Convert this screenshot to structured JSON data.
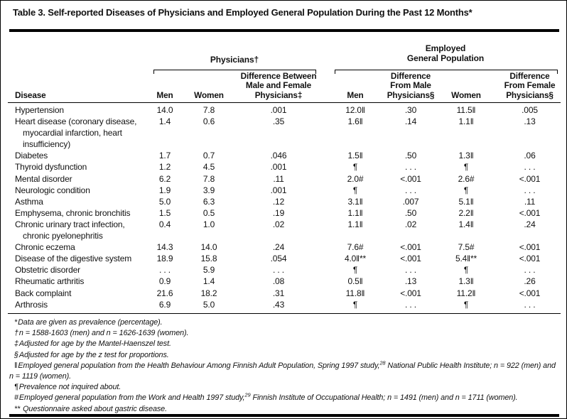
{
  "title": "Table 3. Self-reported Diseases of Physicians and Employed General Population During the Past 12 Months*",
  "header": {
    "group_physicians": "Physicians†",
    "group_population_lines": [
      "Employed",
      "General Population"
    ],
    "columns": {
      "disease": "Disease",
      "phys_men": "Men",
      "phys_women": "Women",
      "phys_diff_lines": [
        "Difference Between",
        "Male and Female",
        "Physicians‡"
      ],
      "pop_men": "Men",
      "pop_diff_male_lines": [
        "Difference",
        "From Male",
        "Physicians§"
      ],
      "pop_women": "Women",
      "pop_diff_female_lines": [
        "Difference",
        "From Female",
        "Physicians§"
      ]
    }
  },
  "rows": [
    {
      "disease": "Hypertension",
      "values": [
        "14.0",
        "7.8",
        ".001",
        "12.0‖",
        ".30",
        "11.5‖",
        ".005"
      ]
    },
    {
      "disease": "Heart disease (coronary disease, myocardial infarction, heart insufficiency)",
      "values": [
        "1.4",
        "0.6",
        ".35",
        "1.6‖",
        ".14",
        "1.1‖",
        ".13"
      ]
    },
    {
      "disease": "Diabetes",
      "values": [
        "1.7",
        "0.7",
        ".046",
        "1.5‖",
        ".50",
        "1.3‖",
        ".06"
      ]
    },
    {
      "disease": "Thyroid dysfunction",
      "values": [
        "1.2",
        "4.5",
        ".001",
        "¶",
        ". . .",
        "¶",
        ". . ."
      ]
    },
    {
      "disease": "Mental disorder",
      "values": [
        "6.2",
        "7.8",
        ".11",
        "2.0#",
        "<.001",
        "2.6#",
        "<.001"
      ]
    },
    {
      "disease": "Neurologic condition",
      "values": [
        "1.9",
        "3.9",
        ".001",
        "¶",
        ". . .",
        "¶",
        ". . ."
      ]
    },
    {
      "disease": "Asthma",
      "values": [
        "5.0",
        "6.3",
        ".12",
        "3.1‖",
        ".007",
        "5.1‖",
        ".11"
      ]
    },
    {
      "disease": "Emphysema, chronic bronchitis",
      "values": [
        "1.5",
        "0.5",
        ".19",
        "1.1‖",
        ".50",
        "2.2‖",
        "<.001"
      ]
    },
    {
      "disease": "Chronic urinary tract infection, chronic pyelonephritis",
      "values": [
        "0.4",
        "1.0",
        ".02",
        "1.1‖",
        ".02",
        "1.4‖",
        ".24"
      ]
    },
    {
      "disease": "Chronic eczema",
      "values": [
        "14.3",
        "14.0",
        ".24",
        "7.6#",
        "<.001",
        "7.5#",
        "<.001"
      ]
    },
    {
      "disease": "Disease of the digestive system",
      "values": [
        "18.9",
        "15.8",
        ".054",
        "4.0‖**",
        "<.001",
        "5.4‖**",
        "<.001"
      ]
    },
    {
      "disease": "Obstetric disorder",
      "values": [
        ". . .",
        "5.9",
        ". . .",
        "¶",
        ". . .",
        "¶",
        ". . ."
      ]
    },
    {
      "disease": "Rheumatic arthritis",
      "values": [
        "0.9",
        "1.4",
        ".08",
        "0.5‖",
        ".13",
        "1.3‖",
        ".26"
      ]
    },
    {
      "disease": "Back complaint",
      "values": [
        "21.6",
        "18.2",
        ".31",
        "11.8‖",
        "<.001",
        "11.2‖",
        "<.001"
      ]
    },
    {
      "disease": "Arthrosis",
      "values": [
        "6.9",
        "5.0",
        ".43",
        "¶",
        ". . .",
        "¶",
        ". . ."
      ]
    }
  ],
  "footnotes": [
    {
      "marker": "*",
      "parts": [
        {
          "text": "Data are given as prevalence (percentage)."
        }
      ]
    },
    {
      "marker": "†",
      "parts": [
        {
          "text": "n = 1588-1603 (men) and n = 1626-1639 (women)."
        }
      ]
    },
    {
      "marker": "‡",
      "parts": [
        {
          "text": "Adjusted for age by the Mantel-Haenszel test."
        }
      ]
    },
    {
      "marker": "§",
      "parts": [
        {
          "text": "Adjusted for age by the z test for proportions."
        }
      ]
    },
    {
      "marker": "‖",
      "parts": [
        {
          "text": "Employed general population from the Health Behaviour Among Finnish Adult Population, Spring 1997 study,"
        },
        {
          "sup": "28"
        },
        {
          "text": " National Public Health Institute; n = 922 (men) and n = 1119 (women)."
        }
      ]
    },
    {
      "marker": "¶",
      "parts": [
        {
          "text": "Prevalence not inquired about."
        }
      ]
    },
    {
      "marker": "#",
      "parts": [
        {
          "text": "Employed general population from the Work and Health 1997 study,"
        },
        {
          "sup": "29"
        },
        {
          "text": " Finnish Institute of Occupational Health; n = 1491 (men) and n = 1711 (women)."
        }
      ]
    },
    {
      "marker": "**",
      "parts": [
        {
          "text": " Questionnaire asked about gastric disease."
        }
      ]
    }
  ],
  "colors": {
    "text": "#111111",
    "rule": "#000000",
    "background": "#ffffff"
  }
}
